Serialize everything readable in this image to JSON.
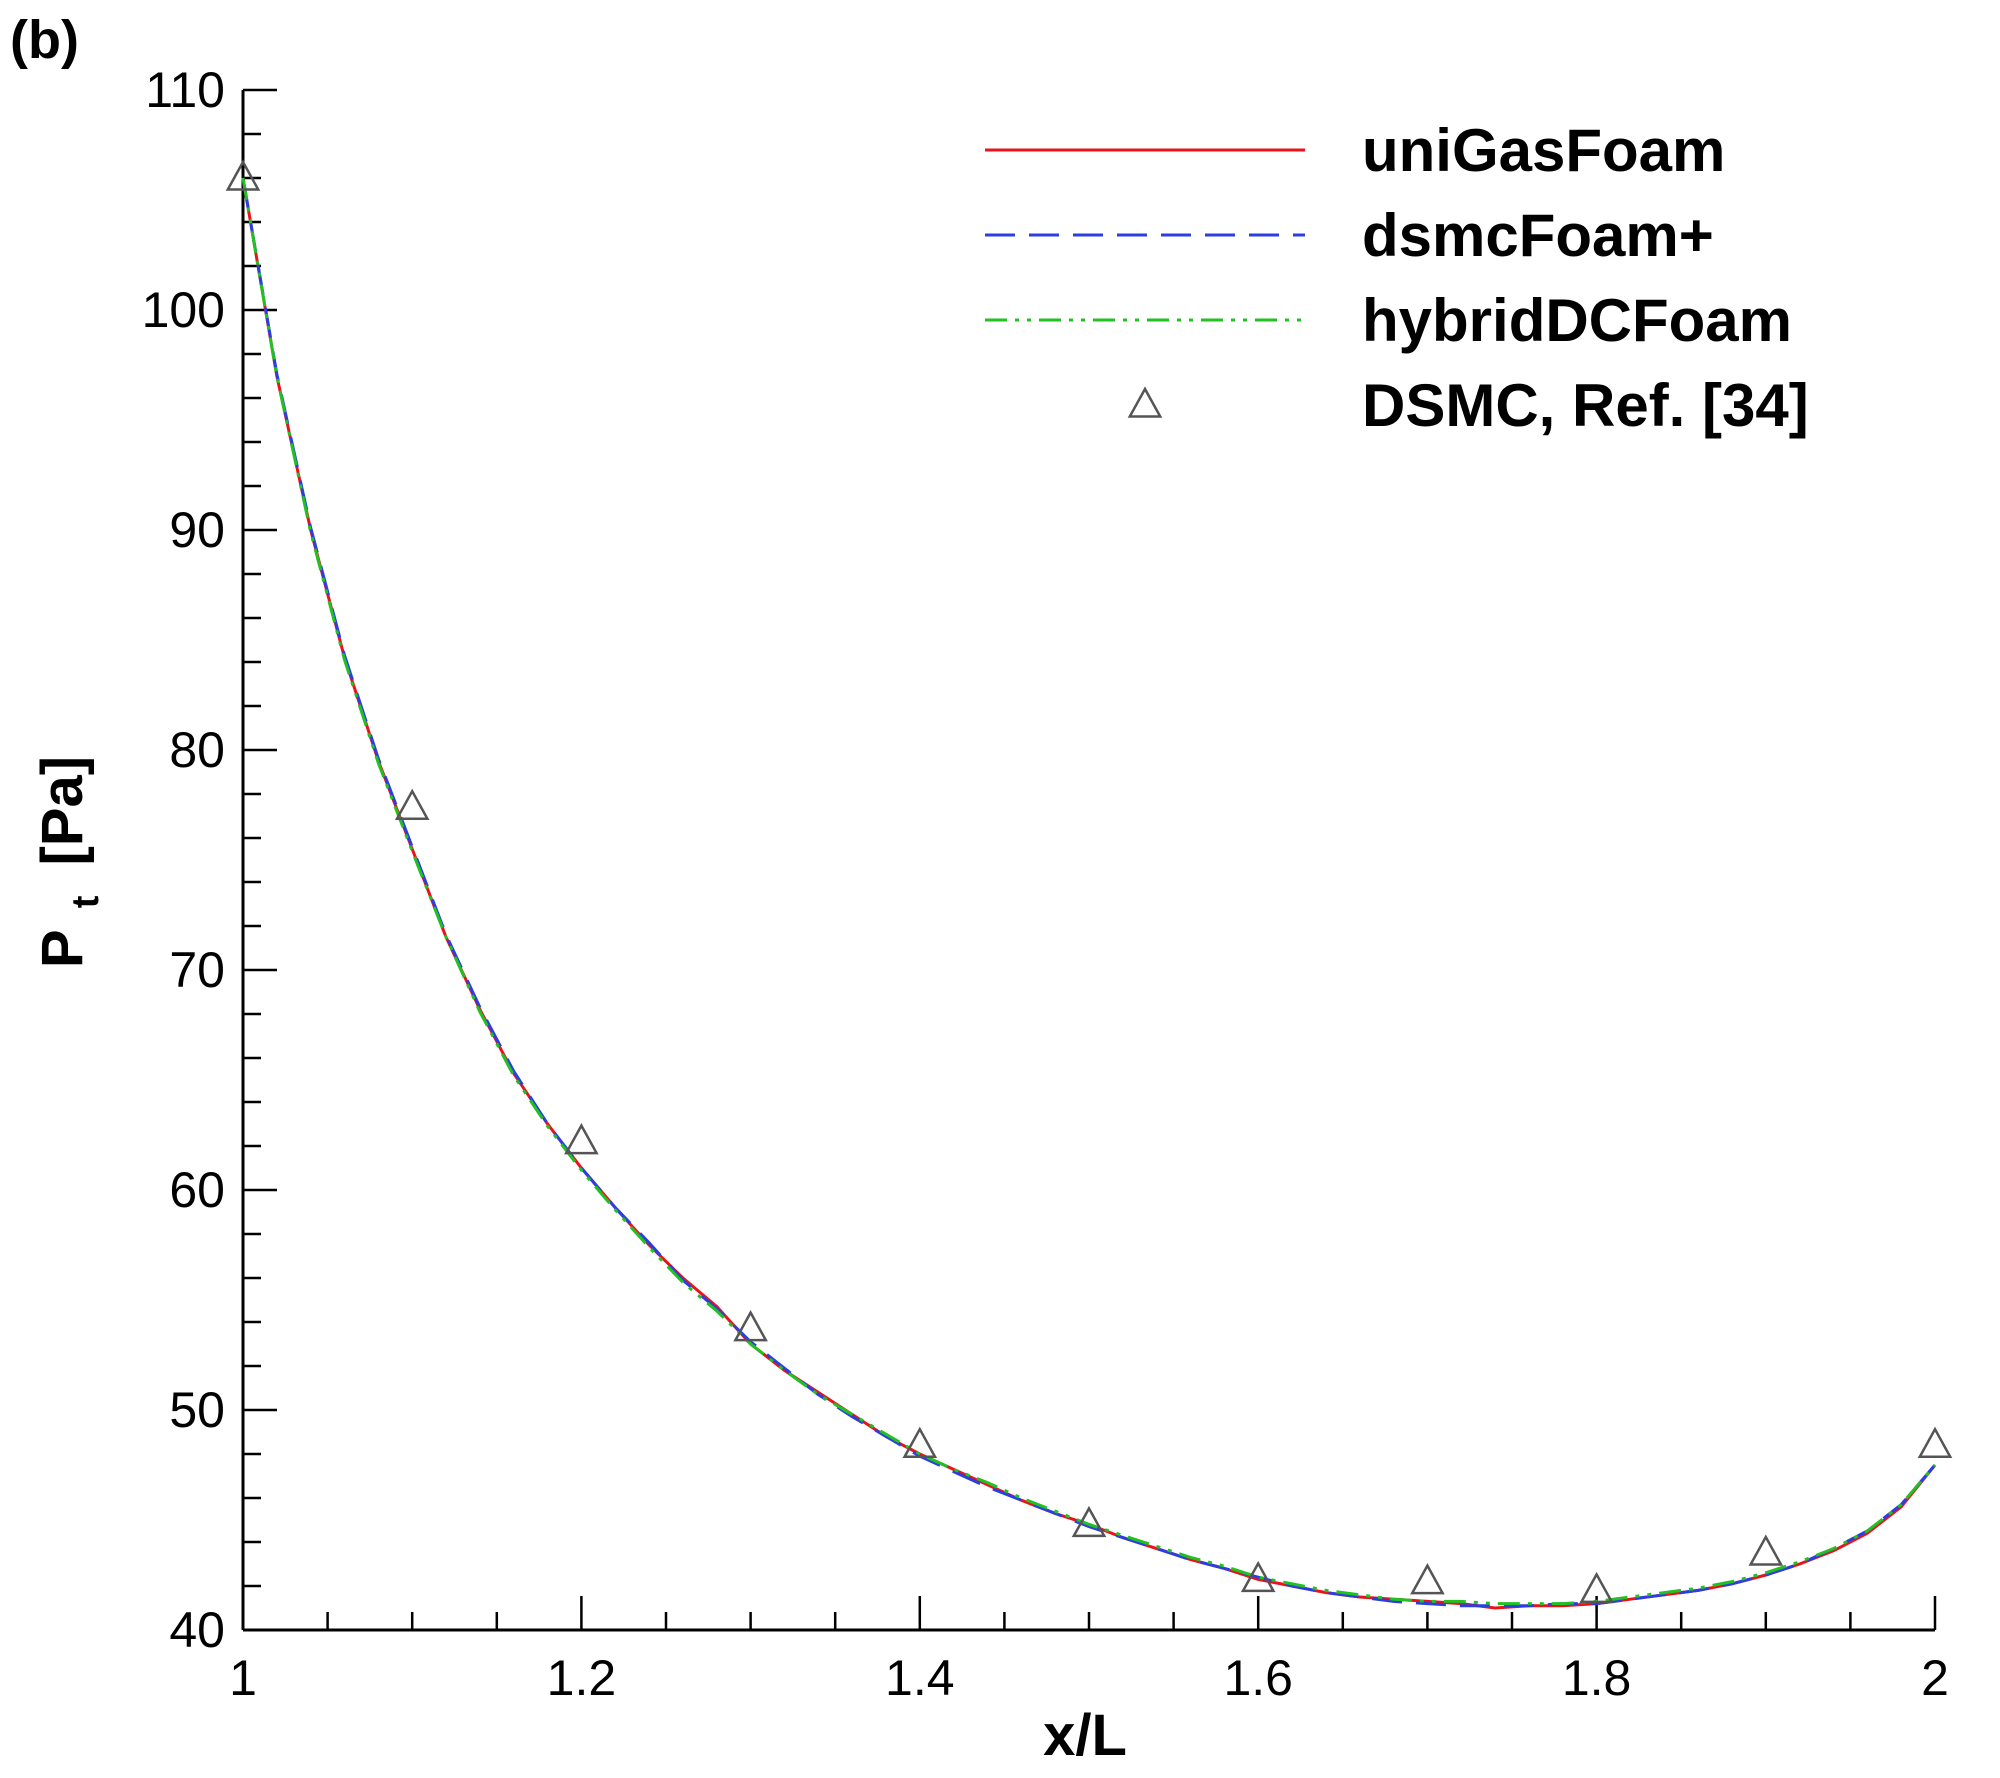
{
  "panel_label": "(b)",
  "chart_data": {
    "type": "line",
    "xlabel": "x/L",
    "ylabel_main": "P",
    "ylabel_sub": "t",
    "ylabel_unit": "[Pa]",
    "xlim": [
      1,
      2
    ],
    "ylim": [
      40,
      110
    ],
    "x_ticks": [
      "1",
      "1.2",
      "1.4",
      "1.6",
      "1.8",
      "2"
    ],
    "y_ticks": [
      "40",
      "50",
      "60",
      "70",
      "80",
      "90",
      "100",
      "110"
    ],
    "grid": false,
    "legend_position": "top-right",
    "x": [
      1.0,
      1.02,
      1.04,
      1.06,
      1.08,
      1.1,
      1.12,
      1.14,
      1.16,
      1.18,
      1.2,
      1.22,
      1.24,
      1.26,
      1.28,
      1.3,
      1.32,
      1.34,
      1.36,
      1.38,
      1.4,
      1.42,
      1.44,
      1.46,
      1.48,
      1.5,
      1.52,
      1.54,
      1.56,
      1.58,
      1.6,
      1.62,
      1.64,
      1.66,
      1.68,
      1.7,
      1.72,
      1.74,
      1.76,
      1.78,
      1.8,
      1.82,
      1.84,
      1.86,
      1.88,
      1.9,
      1.92,
      1.94,
      1.96,
      1.98,
      2.0
    ],
    "series": [
      {
        "name": "uniGasFoam",
        "color": "#e8141c",
        "dash": "",
        "values": [
          106.0,
          97.0,
          90.0,
          84.2,
          79.5,
          75.5,
          71.5,
          68.2,
          65.3,
          63.0,
          61.0,
          59.2,
          57.5,
          56.0,
          54.7,
          53.0,
          51.8,
          50.8,
          49.8,
          48.8,
          48.0,
          47.3,
          46.6,
          45.9,
          45.3,
          44.8,
          44.2,
          43.7,
          43.2,
          42.8,
          42.3,
          42.0,
          41.7,
          41.5,
          41.4,
          41.3,
          41.2,
          41.0,
          41.1,
          41.1,
          41.2,
          41.4,
          41.6,
          41.8,
          42.1,
          42.5,
          43.0,
          43.6,
          44.4,
          45.6,
          47.5
        ]
      },
      {
        "name": "dsmcFoam+",
        "color": "#2b3fe0",
        "dash": "30,14",
        "values": [
          106.0,
          97.1,
          90.1,
          84.3,
          79.6,
          75.6,
          71.6,
          68.3,
          65.4,
          63.0,
          61.0,
          59.2,
          57.6,
          55.9,
          54.6,
          53.1,
          51.9,
          50.7,
          49.7,
          48.8,
          47.9,
          47.2,
          46.5,
          45.9,
          45.3,
          44.7,
          44.2,
          43.7,
          43.2,
          42.8,
          42.4,
          42.0,
          41.7,
          41.5,
          41.3,
          41.2,
          41.1,
          41.1,
          41.1,
          41.2,
          41.2,
          41.4,
          41.6,
          41.8,
          42.1,
          42.5,
          43.0,
          43.7,
          44.5,
          45.7,
          47.5
        ]
      },
      {
        "name": "hybridDCFoam",
        "color": "#22c022",
        "dash": "22,8,4,8,4,8",
        "values": [
          106.0,
          97.0,
          89.9,
          84.1,
          79.4,
          75.4,
          71.5,
          68.1,
          65.2,
          62.9,
          60.9,
          59.1,
          57.4,
          55.8,
          54.5,
          53.0,
          51.8,
          50.7,
          49.8,
          48.9,
          48.0,
          47.3,
          46.7,
          46.0,
          45.4,
          44.8,
          44.3,
          43.8,
          43.3,
          42.9,
          42.4,
          42.1,
          41.8,
          41.6,
          41.4,
          41.3,
          41.3,
          41.2,
          41.2,
          41.2,
          41.3,
          41.5,
          41.7,
          41.9,
          42.2,
          42.6,
          43.1,
          43.7,
          44.5,
          45.7,
          47.5
        ]
      }
    ],
    "markers": {
      "name": "DSMC, Ref. [34]",
      "color": "#555555",
      "shape": "triangle",
      "x": [
        1.0,
        1.1,
        1.2,
        1.3,
        1.4,
        1.5,
        1.6,
        1.7,
        1.8,
        1.9,
        2.0
      ],
      "y": [
        106.0,
        77.4,
        62.2,
        53.7,
        48.4,
        44.8,
        42.3,
        42.2,
        41.8,
        43.5,
        48.4
      ]
    }
  }
}
